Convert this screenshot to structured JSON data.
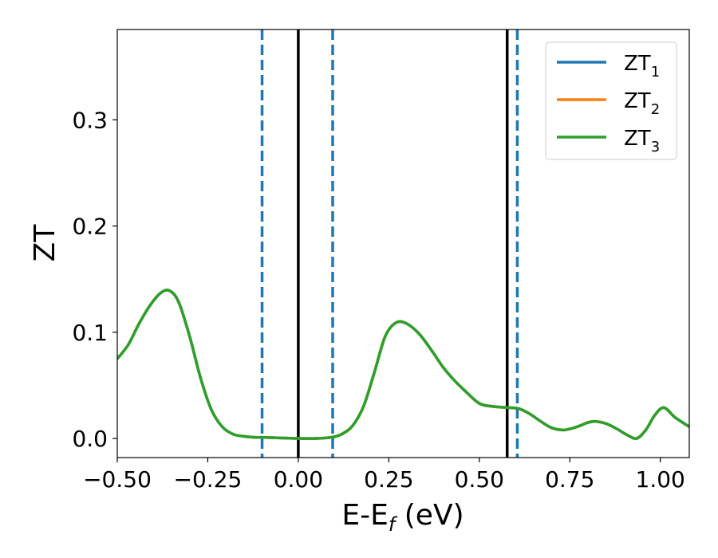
{
  "chart_data": {
    "type": "line",
    "title": "",
    "xlabel": "E-E",
    "xlabel_sub": "f",
    "xlabel_unit": " (eV)",
    "ylabel": "ZT",
    "xlim": [
      -0.5,
      1.08
    ],
    "ylim": [
      -0.018,
      0.385
    ],
    "grid": false,
    "legend_placement": "top-right",
    "x_ticks": [
      -0.5,
      -0.25,
      0.0,
      0.25,
      0.5,
      0.75,
      1.0
    ],
    "x_tick_labels": [
      "−0.50",
      "−0.25",
      "0.00",
      "0.25",
      "0.50",
      "0.75",
      "1.00"
    ],
    "y_ticks": [
      0.0,
      0.1,
      0.2,
      0.3
    ],
    "y_tick_labels": [
      "0.0",
      "0.1",
      "0.2",
      "0.3"
    ],
    "vertical_lines": [
      {
        "x": -0.1,
        "style": "dashed",
        "color": "#1f77b4"
      },
      {
        "x": 0.0,
        "style": "solid",
        "color": "#000000"
      },
      {
        "x": 0.095,
        "style": "dashed",
        "color": "#1f77b4"
      },
      {
        "x": 0.577,
        "style": "solid",
        "color": "#000000"
      },
      {
        "x": 0.605,
        "style": "dashed",
        "color": "#1f77b4"
      }
    ],
    "x": [
      -0.5,
      -0.47,
      -0.44,
      -0.41,
      -0.38,
      -0.355,
      -0.33,
      -0.3,
      -0.27,
      -0.24,
      -0.21,
      -0.18,
      -0.15,
      -0.12,
      -0.1,
      -0.05,
      0.0,
      0.05,
      0.09,
      0.12,
      0.15,
      0.18,
      0.21,
      0.24,
      0.27,
      0.3,
      0.335,
      0.37,
      0.4,
      0.43,
      0.46,
      0.5,
      0.54,
      0.58,
      0.61,
      0.64,
      0.67,
      0.7,
      0.735,
      0.77,
      0.8,
      0.82,
      0.85,
      0.88,
      0.91,
      0.935,
      0.96,
      0.985,
      1.01,
      1.04,
      1.08
    ],
    "series": [
      {
        "name": "ZT",
        "name_sub": "1",
        "color": "#1f77b4",
        "values": [
          0.075,
          0.088,
          0.108,
          0.125,
          0.137,
          0.139,
          0.128,
          0.096,
          0.057,
          0.027,
          0.011,
          0.004,
          0.002,
          0.001,
          0.001,
          0.0005,
          0.0,
          0.0,
          0.001,
          0.004,
          0.012,
          0.03,
          0.062,
          0.096,
          0.109,
          0.108,
          0.098,
          0.082,
          0.067,
          0.055,
          0.045,
          0.033,
          0.03,
          0.029,
          0.028,
          0.023,
          0.016,
          0.01,
          0.008,
          0.011,
          0.015,
          0.016,
          0.014,
          0.009,
          0.003,
          0.0,
          0.008,
          0.022,
          0.029,
          0.02,
          0.011
        ]
      },
      {
        "name": "ZT",
        "name_sub": "2",
        "color": "#ff7f0e",
        "values": [
          0.075,
          0.088,
          0.108,
          0.125,
          0.137,
          0.139,
          0.128,
          0.096,
          0.057,
          0.027,
          0.011,
          0.004,
          0.002,
          0.001,
          0.001,
          0.0005,
          0.0,
          0.0,
          0.001,
          0.004,
          0.012,
          0.03,
          0.062,
          0.096,
          0.109,
          0.108,
          0.098,
          0.082,
          0.067,
          0.055,
          0.045,
          0.033,
          0.03,
          0.029,
          0.028,
          0.023,
          0.016,
          0.01,
          0.008,
          0.011,
          0.015,
          0.016,
          0.014,
          0.009,
          0.003,
          0.0,
          0.008,
          0.022,
          0.029,
          0.02,
          0.011
        ]
      },
      {
        "name": "ZT",
        "name_sub": "3",
        "color": "#2ca02c",
        "values": [
          0.075,
          0.088,
          0.108,
          0.125,
          0.137,
          0.139,
          0.128,
          0.096,
          0.057,
          0.027,
          0.011,
          0.004,
          0.002,
          0.001,
          0.001,
          0.0005,
          0.0,
          0.0,
          0.001,
          0.004,
          0.012,
          0.03,
          0.062,
          0.096,
          0.109,
          0.108,
          0.098,
          0.082,
          0.067,
          0.055,
          0.045,
          0.033,
          0.03,
          0.029,
          0.028,
          0.023,
          0.016,
          0.01,
          0.008,
          0.011,
          0.015,
          0.016,
          0.014,
          0.009,
          0.003,
          0.0,
          0.008,
          0.022,
          0.029,
          0.02,
          0.011
        ]
      }
    ]
  }
}
